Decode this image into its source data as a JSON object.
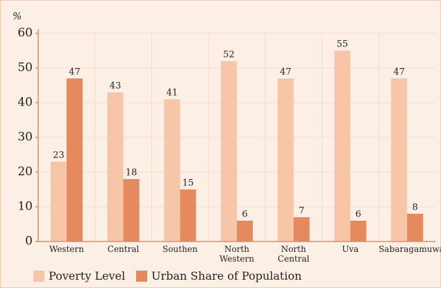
{
  "chart_data": {
    "type": "bar",
    "y_label": "%",
    "categories": [
      "Western",
      "Central",
      "Southen",
      "North Western",
      "North Central",
      "Uva",
      "Sabaragamuwa"
    ],
    "series": [
      {
        "name": "Poverty Level",
        "color": "#f7c6a8",
        "values": [
          23,
          43,
          41,
          52,
          47,
          55,
          47
        ]
      },
      {
        "name": "Urban Share of Population",
        "color": "#e58a5e",
        "values": [
          47,
          18,
          15,
          6,
          7,
          6,
          8
        ]
      }
    ],
    "ylim": [
      0,
      60
    ],
    "yticks": [
      0,
      10,
      20,
      30,
      40,
      50,
      60
    ],
    "grid": true
  }
}
